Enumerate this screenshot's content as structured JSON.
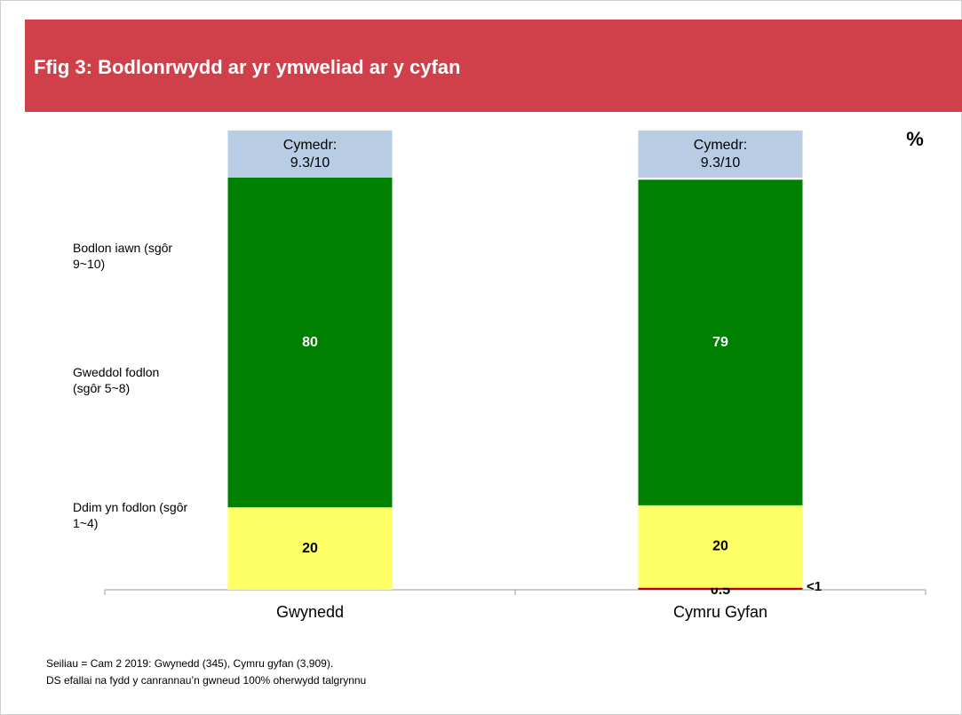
{
  "chart_data": {
    "type": "stacked_bar",
    "title": "Ffig 3: Bodlonrwydd ar yr ymweliad ar y cyfan",
    "unit_label": "%",
    "categories": [
      "Gwynedd",
      "Cymru Gyfan"
    ],
    "series": [
      {
        "name": "Ddim yn fodlon (sgôr 1~4)",
        "color": "#c00000",
        "values": [
          0,
          0.5
        ],
        "value_labels": [
          null,
          "0.5"
        ]
      },
      {
        "name": "Gweddol fodlon (sgôr 5~8)",
        "color": "#ffff66",
        "values": [
          20,
          20
        ]
      },
      {
        "name": "Bodlon iawn (sgôr 9~10)",
        "color": "#008000",
        "values": [
          80,
          79
        ]
      }
    ],
    "ylim": [
      0,
      100
    ],
    "mean_labels": [
      [
        "Cymedr:",
        "9.3/10"
      ],
      [
        "Cymedr:",
        "9.3/10"
      ]
    ],
    "annotations": [
      "<1"
    ],
    "footnotes": [
      "Seiliau = Cam 2 2019: Gwynedd  (345), Cymru gyfan (3,909).",
      "DS efallai na fydd y canrannau’n gwneud 100% oherwydd talgrynnu"
    ]
  }
}
